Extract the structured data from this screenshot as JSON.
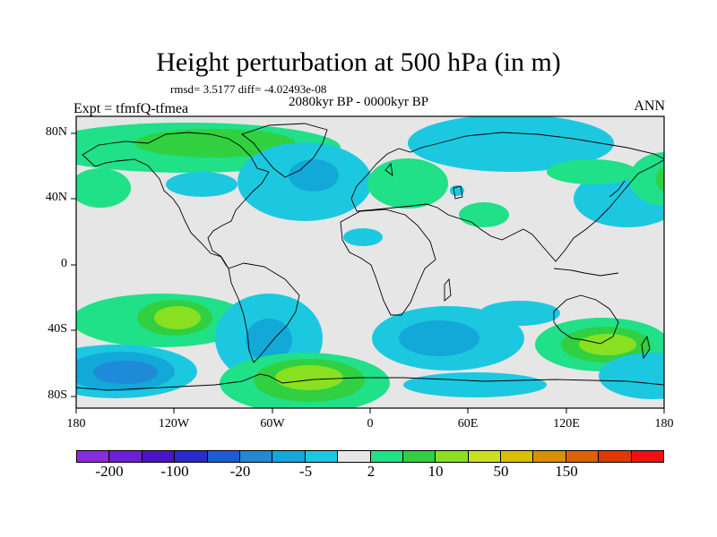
{
  "title": "Height perturbation at 500 hPa (in m)",
  "stats": "rmsd= 3.5177 diff= -4.02493e-08",
  "period": "2080kyr BP - 0000kyr BP",
  "experiment": "Expt = tfmfQ-tfmea",
  "season": "ANN",
  "lat_labels": [
    "80N",
    "40N",
    "0",
    "40S",
    "80S"
  ],
  "lon_labels": [
    "180",
    "120W",
    "60W",
    "0",
    "60E",
    "120E",
    "180"
  ],
  "colorbar": {
    "labels": [
      "-200",
      "-100",
      "-20",
      "-5",
      "2",
      "10",
      "50",
      "150"
    ],
    "colors": [
      "#8a2be2",
      "#6a1fd8",
      "#4b14c8",
      "#2a2ad0",
      "#1e5bd8",
      "#1e8ad8",
      "#12a8d8",
      "#1cc8e0",
      "#e6e6e6",
      "#20e088",
      "#30d040",
      "#88e020",
      "#c8e020",
      "#d8c000",
      "#d89000",
      "#e06000",
      "#e03800",
      "#f01010"
    ]
  },
  "field_colors": {
    "neutral": "#e6e6e6",
    "neg_light": "#1cc8e0",
    "neg_mid": "#12a8d8",
    "neg_dark": "#1e8ad8",
    "pos_light": "#20e088",
    "pos_mid": "#30d040",
    "pos_strong": "#88e020",
    "pos_max": "#c8e020"
  }
}
